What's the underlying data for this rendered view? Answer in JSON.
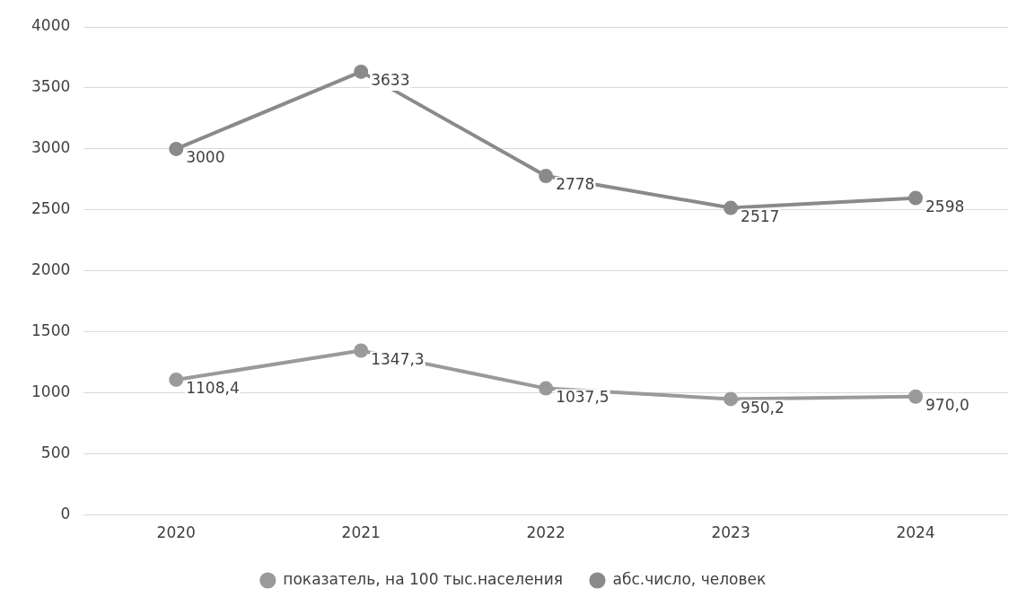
{
  "chart_data": {
    "type": "line",
    "categories": [
      "2020",
      "2021",
      "2022",
      "2023",
      "2024"
    ],
    "series": [
      {
        "name": "показатель, на 100 тыс.населения",
        "color": "#9a9a9a",
        "values": [
          1108.4,
          1347.3,
          1037.5,
          950.2,
          970.0
        ],
        "value_labels": [
          "1108,4",
          "1347,3",
          "1037,5",
          "950,2",
          "970,0"
        ]
      },
      {
        "name": "абс.число, человек",
        "color": "#8a8a8a",
        "values": [
          3000,
          3633,
          2778,
          2517,
          2598
        ],
        "value_labels": [
          "3000",
          "3633",
          "2778",
          "2517",
          "2598"
        ]
      }
    ],
    "ylim": [
      0,
      4000
    ],
    "yticks": [
      0,
      500,
      1000,
      1500,
      2000,
      2500,
      3000,
      3500,
      4000
    ],
    "grid": "y",
    "legend": "bottom",
    "marker": "circle",
    "line_style": "solid"
  }
}
